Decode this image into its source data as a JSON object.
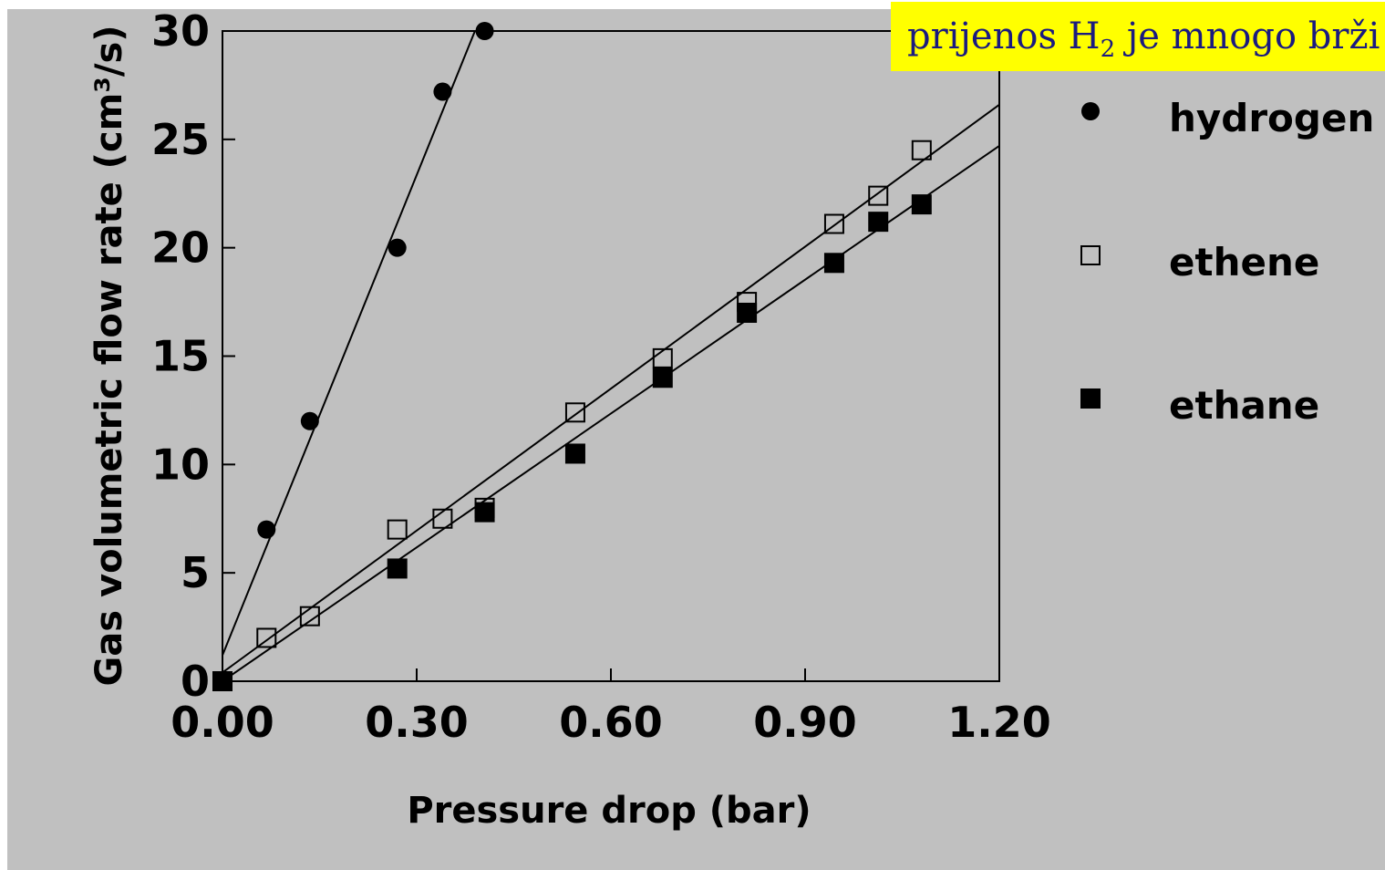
{
  "banner": {
    "pre": "prijenos H",
    "sub": "2",
    "post": " je mnogo brži"
  },
  "chart_data": {
    "type": "scatter",
    "title": "",
    "xlabel": "Pressure drop (bar)",
    "ylabel": "Gas volumetric flow rate (cm³/s)",
    "xlim": [
      0,
      1.2
    ],
    "ylim": [
      0,
      30
    ],
    "xticks": [
      "0.00",
      "0.30",
      "0.60",
      "0.90",
      "1.20"
    ],
    "yticks": [
      "0",
      "5",
      "10",
      "15",
      "20",
      "25",
      "30"
    ],
    "legend_position": "right",
    "series": [
      {
        "name": "hydrogen",
        "marker": "filled-circle",
        "x": [
          0,
          0.068,
          0.135,
          0.27,
          0.34,
          0.405
        ],
        "y": [
          0,
          7,
          12,
          20,
          27.2,
          30
        ],
        "fit": {
          "x": [
            0,
            0.39
          ],
          "y": [
            1.2,
            30
          ]
        }
      },
      {
        "name": "ethene",
        "marker": "open-square",
        "x": [
          0,
          0.068,
          0.135,
          0.27,
          0.34,
          0.405,
          0.545,
          0.68,
          0.81,
          0.945,
          1.013,
          1.08
        ],
        "y": [
          0,
          2,
          3,
          7,
          7.5,
          8,
          12.4,
          14.9,
          17.5,
          21.1,
          22.4,
          24.5
        ],
        "fit": {
          "x": [
            0,
            1.2
          ],
          "y": [
            0.4,
            26.6
          ]
        }
      },
      {
        "name": "ethane",
        "marker": "filled-square",
        "x": [
          0,
          0.27,
          0.405,
          0.545,
          0.68,
          0.81,
          0.945,
          1.013,
          1.08
        ],
        "y": [
          0,
          5.2,
          7.8,
          10.5,
          14,
          17,
          19.3,
          21.2,
          22
        ],
        "fit": {
          "x": [
            0,
            1.2
          ],
          "y": [
            0,
            24.7
          ]
        }
      }
    ]
  }
}
